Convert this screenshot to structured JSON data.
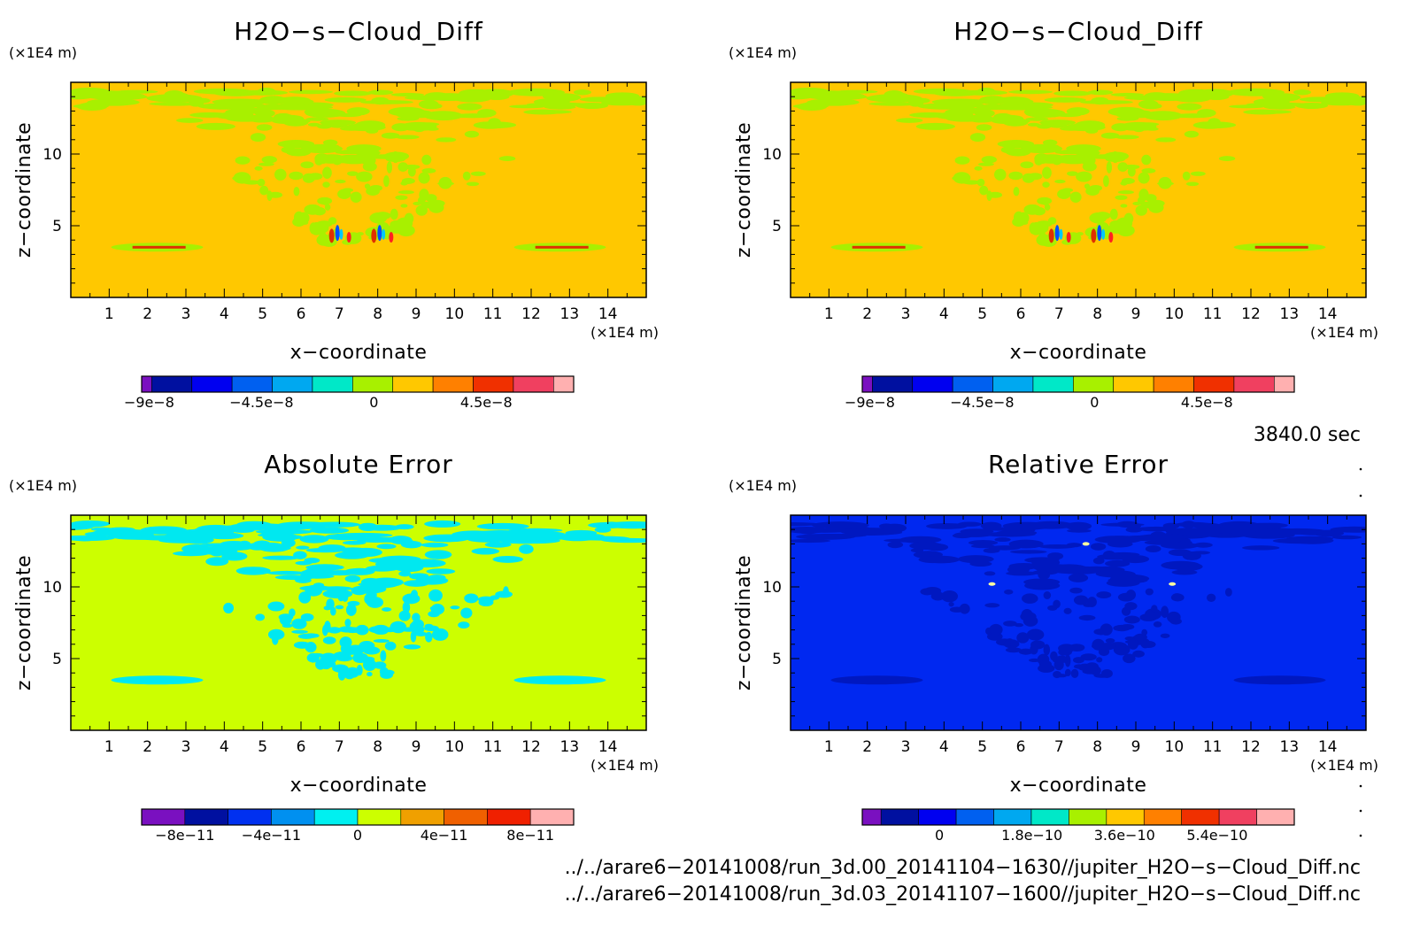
{
  "panels": [
    {
      "title": "H2O−s−Cloud_Diff",
      "background_color": "#FFC800",
      "pattern_color": "#A8F000",
      "feature_colors": [
        "#E03000",
        "#0050FF",
        "#00C8FF",
        "#FF2020"
      ],
      "colorbar": {
        "colors": [
          "#7A10C0",
          "#0010A0",
          "#0000F0",
          "#0060F0",
          "#00A8F0",
          "#00E8C8",
          "#A8F000",
          "#FFC800",
          "#FF8000",
          "#F03000",
          "#F04060",
          "#FFB0B0"
        ],
        "widths": [
          0.5,
          2,
          2,
          2,
          2,
          2,
          2,
          2,
          2,
          2,
          2,
          1
        ],
        "labels": [
          {
            "text": "−9e−8",
            "value": -9e-08
          },
          {
            "text": "−4.5e−8",
            "value": -4.5e-08
          },
          {
            "text": "0",
            "value": 0
          },
          {
            "text": "4.5e−8",
            "value": 4.5e-08
          }
        ],
        "range": [
          -9.3e-08,
          8e-08
        ]
      }
    },
    {
      "title": "H2O−s−Cloud_Diff",
      "background_color": "#FFC800",
      "pattern_color": "#A8F000",
      "feature_colors": [
        "#E03000",
        "#0050FF",
        "#00C8FF",
        "#FF2020"
      ],
      "colorbar": {
        "colors": [
          "#7A10C0",
          "#0010A0",
          "#0000F0",
          "#0060F0",
          "#00A8F0",
          "#00E8C8",
          "#A8F000",
          "#FFC800",
          "#FF8000",
          "#F03000",
          "#F04060",
          "#FFB0B0"
        ],
        "widths": [
          0.5,
          2,
          2,
          2,
          2,
          2,
          2,
          2,
          2,
          2,
          2,
          1
        ],
        "labels": [
          {
            "text": "−9e−8",
            "value": -9e-08
          },
          {
            "text": "−4.5e−8",
            "value": -4.5e-08
          },
          {
            "text": "0",
            "value": 0
          },
          {
            "text": "4.5e−8",
            "value": 4.5e-08
          }
        ],
        "range": [
          -9.3e-08,
          8e-08
        ]
      }
    },
    {
      "title": "Absolute Error",
      "background_color": "#CCFF00",
      "pattern_color": "#00E8F0",
      "feature_colors": [],
      "colorbar": {
        "colors": [
          "#7A10C0",
          "#0010A0",
          "#0030F0",
          "#0090F0",
          "#00F0F0",
          "#CCFF00",
          "#F0A000",
          "#F06000",
          "#F02000",
          "#FFB0B0"
        ],
        "widths": [
          1,
          1,
          1,
          1,
          1,
          1,
          1,
          1,
          1,
          1
        ],
        "labels": [
          {
            "text": "−8e−11",
            "value": -8e-11
          },
          {
            "text": "−4e−11",
            "value": -4e-11
          },
          {
            "text": "0",
            "value": 0
          },
          {
            "text": "4e−11",
            "value": 4e-11
          },
          {
            "text": "8e−11",
            "value": 8e-11
          }
        ],
        "range": [
          -1e-10,
          1e-10
        ]
      }
    },
    {
      "title": "Relative Error",
      "background_color": "#0028F0",
      "pattern_color": "#0018C0",
      "feature_colors": [
        "#FFFFA0"
      ],
      "colorbar": {
        "colors": [
          "#7A10C0",
          "#0010A0",
          "#0000F0",
          "#0060F0",
          "#00A8F0",
          "#00E8C8",
          "#A8F000",
          "#FFC800",
          "#FF8000",
          "#F03000",
          "#F04060",
          "#FFB0B0"
        ],
        "widths": [
          0.5,
          1,
          1,
          1,
          1,
          1,
          1,
          1,
          1,
          1,
          1,
          1
        ],
        "labels": [
          {
            "text": "0",
            "value": 0
          },
          {
            "text": "1.8e−10",
            "value": 1.8e-10
          },
          {
            "text": "3.6e−10",
            "value": 3.6e-10
          },
          {
            "text": "5.4e−10",
            "value": 5.4e-10
          }
        ],
        "range": [
          -1.5e-10,
          6.9e-10
        ]
      }
    }
  ],
  "axes": {
    "xlabel": "x−coordinate",
    "ylabel": "z−coordinate",
    "x_unit": "(×1E4 m)",
    "y_unit": "(×1E4 m)",
    "xlim": [
      0,
      15
    ],
    "ylim": [
      0,
      15
    ],
    "x_ticks": [
      "1",
      "2",
      "3",
      "4",
      "5",
      "6",
      "7",
      "8",
      "9",
      "10",
      "11",
      "12",
      "13",
      "14"
    ],
    "y_ticks": [
      {
        "label": "5",
        "value": 5
      },
      {
        "label": "10",
        "value": 10
      }
    ]
  },
  "time_label": "3840.0 sec",
  "footer_lines": [
    "../../arare6−20141008/run_3d.00_20141104−1630//jupiter_H2O−s−Cloud_Diff.nc",
    "../../arare6−20141008/run_3d.03_20141107−1600//jupiter_H2O−s−Cloud_Diff.nc"
  ],
  "chart_data": [
    {
      "type": "heatmap",
      "title": "H2O−s−Cloud_Diff",
      "xlabel": "x−coordinate",
      "ylabel": "z−coordinate",
      "xlim": [
        0,
        15
      ],
      "ylim": [
        0,
        15
      ],
      "colorbar_ticks": [
        -9e-08,
        -4.5e-08,
        0,
        4.5e-08
      ]
    },
    {
      "type": "heatmap",
      "title": "H2O−s−Cloud_Diff",
      "xlabel": "x−coordinate",
      "ylabel": "z−coordinate",
      "xlim": [
        0,
        15
      ],
      "ylim": [
        0,
        15
      ],
      "colorbar_ticks": [
        -9e-08,
        -4.5e-08,
        0,
        4.5e-08
      ]
    },
    {
      "type": "heatmap",
      "title": "Absolute Error",
      "xlabel": "x−coordinate",
      "ylabel": "z−coordinate",
      "xlim": [
        0,
        15
      ],
      "ylim": [
        0,
        15
      ],
      "colorbar_ticks": [
        -8e-11,
        -4e-11,
        0,
        4e-11,
        8e-11
      ]
    },
    {
      "type": "heatmap",
      "title": "Relative Error",
      "xlabel": "x−coordinate",
      "ylabel": "z−coordinate",
      "xlim": [
        0,
        15
      ],
      "ylim": [
        0,
        15
      ],
      "colorbar_ticks": [
        0,
        1.8e-10,
        3.6e-10,
        5.4e-10
      ]
    }
  ]
}
